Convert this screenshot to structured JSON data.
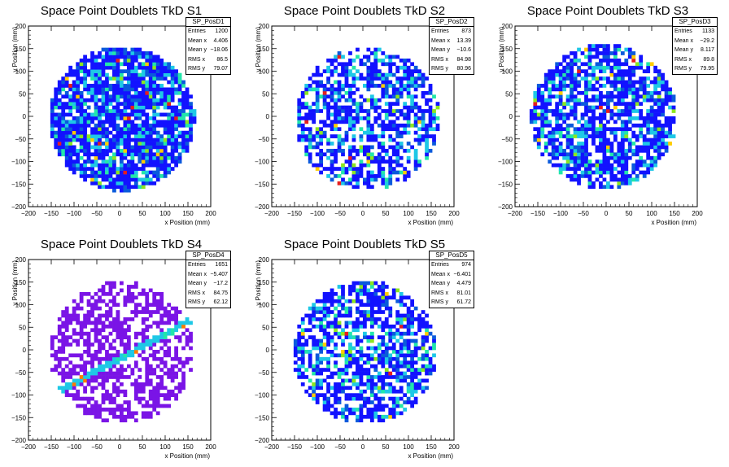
{
  "palette": [
    "#1212ff",
    "#0a5adc",
    "#1ec8e6",
    "#22e6aa",
    "#8ce61e",
    "#ffcc00",
    "#ff7a00",
    "#e61e1e"
  ],
  "s4_palette": [
    "#7a14e6",
    "#1ec8e6",
    "#22e6aa",
    "#ff7a00",
    "#e61e1e"
  ],
  "chart_data": [
    {
      "type": "heatmap",
      "title": "Space Point Doublets TkD S1",
      "xlabel": "x Position (mm)",
      "ylabel": "y Position (mm)",
      "xlim": [
        -200,
        200
      ],
      "ylim": [
        -200,
        200
      ],
      "xticks": [
        "−200",
        "−150",
        "−100",
        "−50",
        "0",
        "50",
        "100",
        "150",
        "200"
      ],
      "yticks": [
        "200",
        "150",
        "100",
        "50",
        "0",
        "−50",
        "−100",
        "−150",
        "−200"
      ],
      "stats": {
        "name": "SP_PosD1",
        "rows": [
          [
            "Entries",
            "1200"
          ],
          [
            "Mean x",
            "4.406"
          ],
          [
            "Mean y",
            "−18.06"
          ],
          [
            "RMS x",
            "86.5"
          ],
          [
            "RMS y",
            "79.07"
          ]
        ]
      },
      "distribution": {
        "cx": 5,
        "cy": -5,
        "r": 160,
        "fill": 0.86,
        "seed": 11,
        "band": null
      }
    },
    {
      "type": "heatmap",
      "title": "Space Point Doublets TkD S2",
      "xlabel": "x Position (mm)",
      "ylabel": "y Position (mm)",
      "xlim": [
        -200,
        200
      ],
      "ylim": [
        -200,
        200
      ],
      "xticks": [
        "−200",
        "−150",
        "−100",
        "−50",
        "0",
        "50",
        "100",
        "150",
        "200"
      ],
      "yticks": [
        "200",
        "150",
        "100",
        "50",
        "0",
        "−50",
        "−100",
        "−150",
        "−200"
      ],
      "stats": {
        "name": "SP_PosD2",
        "rows": [
          [
            "Entries",
            "873"
          ],
          [
            "Mean x",
            "13.39"
          ],
          [
            "Mean y",
            "−10.6"
          ],
          [
            "RMS x",
            "84.98"
          ],
          [
            "RMS y",
            "80.96"
          ]
        ]
      },
      "distribution": {
        "cx": 10,
        "cy": -5,
        "r": 158,
        "fill": 0.6,
        "seed": 23,
        "band": null
      }
    },
    {
      "type": "heatmap",
      "title": "Space Point Doublets TkD S3",
      "xlabel": "x Position (mm)",
      "ylabel": "y Position (mm)",
      "xlim": [
        -200,
        200
      ],
      "ylim": [
        -200,
        200
      ],
      "xticks": [
        "−200",
        "−150",
        "−100",
        "−50",
        "0",
        "50",
        "100",
        "150",
        "200"
      ],
      "yticks": [
        "200",
        "150",
        "100",
        "50",
        "0",
        "−50",
        "−100",
        "−150",
        "−200"
      ],
      "stats": {
        "name": "SP_PosD3",
        "rows": [
          [
            "Entries",
            "1133"
          ],
          [
            "Mean x",
            "−29.2"
          ],
          [
            "Mean y",
            "8.117"
          ],
          [
            "RMS x",
            "89.8"
          ],
          [
            "RMS y",
            "79.95"
          ]
        ]
      },
      "distribution": {
        "cx": -5,
        "cy": 0,
        "r": 160,
        "fill": 0.7,
        "seed": 37,
        "band": null
      }
    },
    {
      "type": "heatmap",
      "title": "Space Point Doublets TkD S4",
      "xlabel": "x Position (mm)",
      "ylabel": "y Position (mm)",
      "xlim": [
        -200,
        200
      ],
      "ylim": [
        -200,
        200
      ],
      "xticks": [
        "−200",
        "−150",
        "−100",
        "−50",
        "0",
        "50",
        "100",
        "150",
        "200"
      ],
      "yticks": [
        "200",
        "150",
        "100",
        "50",
        "0",
        "−50",
        "−100",
        "−150",
        "−200"
      ],
      "stats": {
        "name": "SP_PosD4",
        "rows": [
          [
            "Entries",
            "1651"
          ],
          [
            "Mean x",
            "−5.407"
          ],
          [
            "Mean y",
            "−17.2"
          ],
          [
            "RMS x",
            "84.75"
          ],
          [
            "RMS y",
            "62.12"
          ]
        ]
      },
      "distribution": {
        "cx": 5,
        "cy": -5,
        "r": 158,
        "fill": 0.55,
        "seed": 51,
        "band": {
          "x1": -130,
          "y1": -90,
          "x2": 155,
          "y2": 65
        }
      }
    },
    {
      "type": "heatmap",
      "title": "Space Point Doublets TkD S5",
      "xlabel": "x Position (mm)",
      "ylabel": "y Position (mm)",
      "xlim": [
        -200,
        200
      ],
      "ylim": [
        -200,
        200
      ],
      "xticks": [
        "−200",
        "−150",
        "−100",
        "−50",
        "0",
        "50",
        "100",
        "150",
        "200"
      ],
      "yticks": [
        "200",
        "150",
        "100",
        "50",
        "0",
        "−50",
        "−100",
        "−150",
        "−200"
      ],
      "stats": {
        "name": "SP_PosD5",
        "rows": [
          [
            "Entries",
            "974"
          ],
          [
            "Mean x",
            "−6.401"
          ],
          [
            "Mean y",
            "4.479"
          ],
          [
            "RMS x",
            "81.01"
          ],
          [
            "RMS y",
            "61.72"
          ]
        ]
      },
      "distribution": {
        "cx": 5,
        "cy": -5,
        "r": 158,
        "fill": 0.62,
        "seed": 67,
        "band": null
      }
    }
  ]
}
